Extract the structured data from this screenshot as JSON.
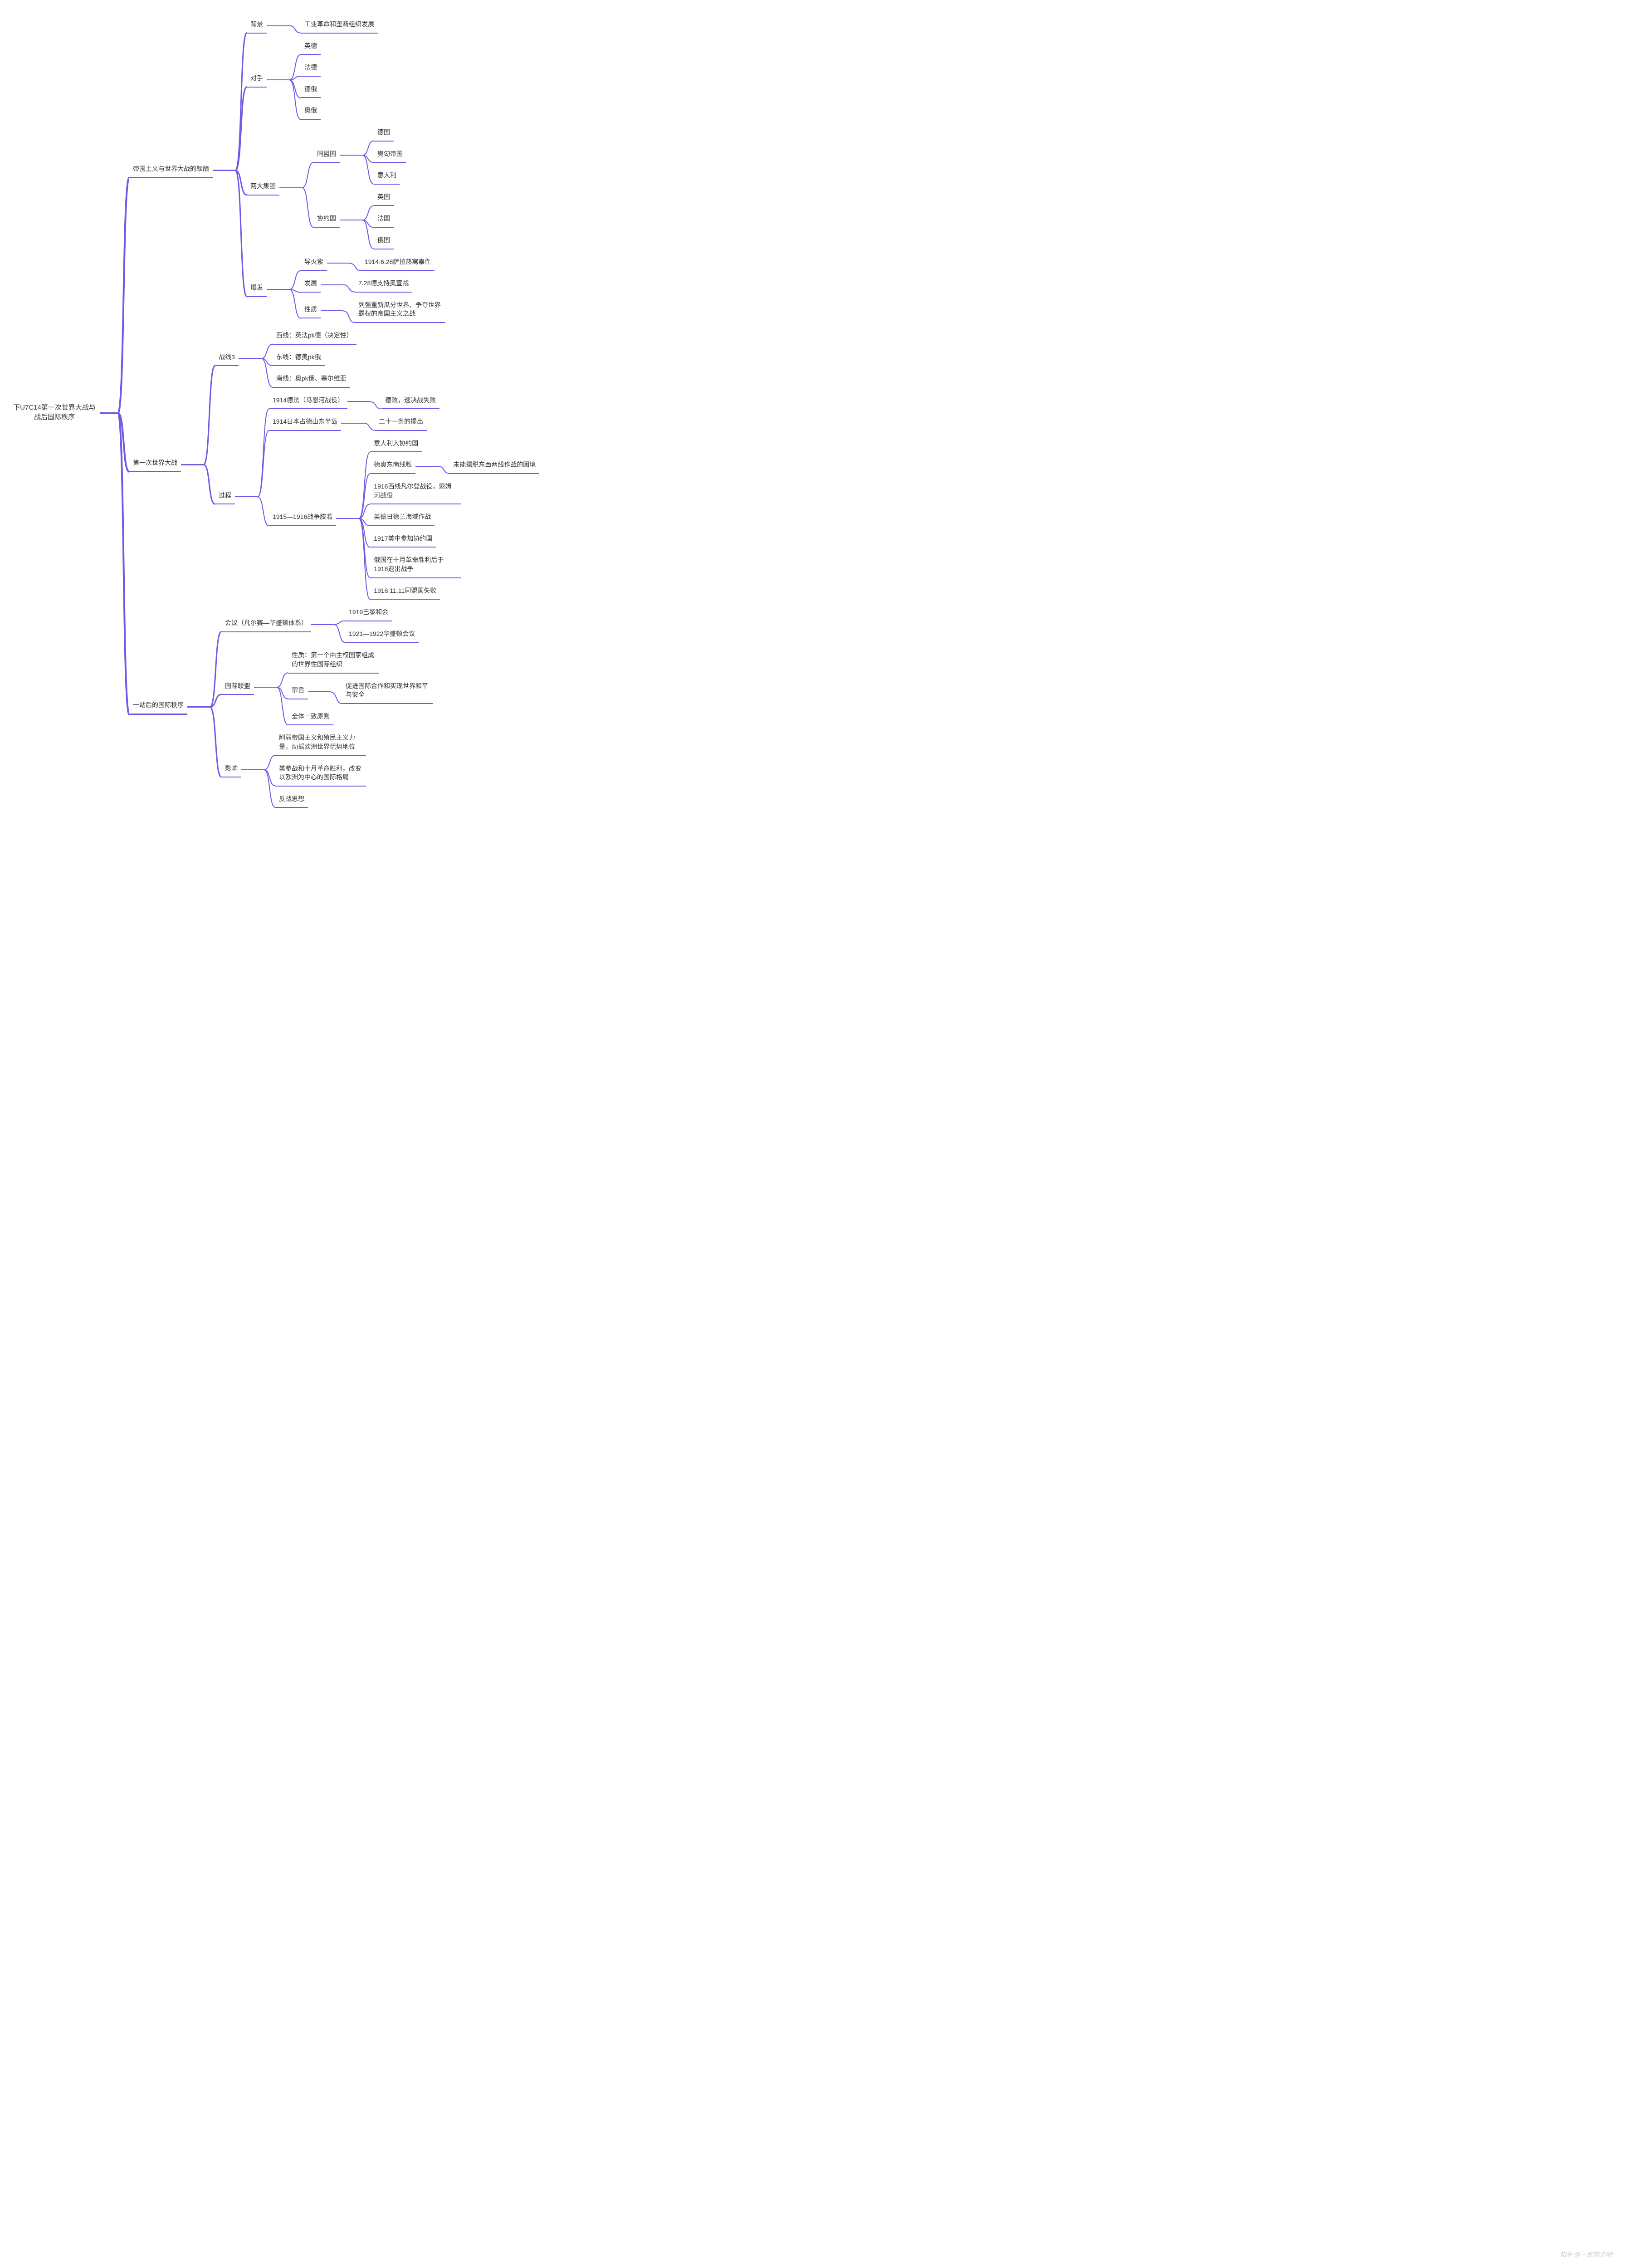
{
  "colors": {
    "branch": "#6b5ce7",
    "text": "#333333",
    "background": "#ffffff",
    "watermark": "#cccccc"
  },
  "layout": {
    "root_border_width": 4,
    "l1_border_width": 3,
    "l2_border_width": 2,
    "leaf_border_width": 2,
    "connector_len_root": 40,
    "connector_len": 50,
    "fork_width": 25,
    "node_gap": 14
  },
  "watermark": "知乎 @一起努力吧",
  "tree": {
    "label": "下U7C14第一次世界大战与战后国际秩序",
    "children": [
      {
        "label": "帝国主义与世界大战的酝酿",
        "children": [
          {
            "label": "背景",
            "children": [
              {
                "label": "工业革命和垄断组织发展"
              }
            ]
          },
          {
            "label": "对手",
            "children": [
              {
                "label": "英德"
              },
              {
                "label": "法德"
              },
              {
                "label": "德俄"
              },
              {
                "label": "奥俄"
              }
            ]
          },
          {
            "label": "两大集团",
            "children": [
              {
                "label": "同盟国",
                "children": [
                  {
                    "label": "德国"
                  },
                  {
                    "label": "奥匈帝国"
                  },
                  {
                    "label": "意大利"
                  }
                ]
              },
              {
                "label": "协约国",
                "children": [
                  {
                    "label": "英国"
                  },
                  {
                    "label": "法国"
                  },
                  {
                    "label": "俄国"
                  }
                ]
              }
            ]
          },
          {
            "label": "爆发",
            "children": [
              {
                "label": "导火索",
                "children": [
                  {
                    "label": "1914.6.28萨拉热窝事件"
                  }
                ]
              },
              {
                "label": "发展",
                "children": [
                  {
                    "label": "7.28德支持奥宣战"
                  }
                ]
              },
              {
                "label": "性质",
                "children": [
                  {
                    "label": "列强重新瓜分世界、争夺世界霸权的帝国主义之战"
                  }
                ]
              }
            ]
          }
        ]
      },
      {
        "label": "第一次世界大战",
        "children": [
          {
            "label": "战线3",
            "children": [
              {
                "label": "西线：英法pk德（决定性）"
              },
              {
                "label": "东线：德奥pk俄"
              },
              {
                "label": "南线：奥pk俄、塞尔维亚"
              }
            ]
          },
          {
            "label": "过程",
            "children": [
              {
                "label": "1914德法（马恩河战役）",
                "children": [
                  {
                    "label": "德败，速决战失败"
                  }
                ]
              },
              {
                "label": "1914日本占德山东半岛",
                "children": [
                  {
                    "label": "二十一条的提出"
                  }
                ]
              },
              {
                "label": "1915—1916战争胶着",
                "children": [
                  {
                    "label": "意大利入协约国"
                  },
                  {
                    "label": "德奥东南线胜",
                    "children": [
                      {
                        "label": "未能摆脱东西两线作战的困境"
                      }
                    ]
                  },
                  {
                    "label": "1916西线凡尔登战役，索姆河战役"
                  },
                  {
                    "label": "英德日德兰海域作战"
                  },
                  {
                    "label": "1917美中参加协约国"
                  },
                  {
                    "label": "俄国在十月革命胜利后于1918退出战争"
                  },
                  {
                    "label": "1918.11.11同盟国失败"
                  }
                ]
              }
            ]
          }
        ]
      },
      {
        "label": "一站后的国际秩序",
        "children": [
          {
            "label": "会议（凡尔赛—华盛顿体系）",
            "children": [
              {
                "label": "1919巴黎和会"
              },
              {
                "label": "1921—1922华盛顿会议"
              }
            ]
          },
          {
            "label": "国际联盟",
            "children": [
              {
                "label": "性质：第一个由主权国家组成的世界性国际组织"
              },
              {
                "label": "宗旨",
                "children": [
                  {
                    "label": "促进国际合作和实现世界和平与安全"
                  }
                ]
              },
              {
                "label": "全体一致原则"
              }
            ]
          },
          {
            "label": "影响",
            "children": [
              {
                "label": "削弱帝国主义和殖民主义力量，动摇欧洲世界优势地位"
              },
              {
                "label": "美参战和十月革命胜利，改变以欧洲为中心的国际格局"
              },
              {
                "label": "反战思想"
              }
            ]
          }
        ]
      }
    ]
  }
}
